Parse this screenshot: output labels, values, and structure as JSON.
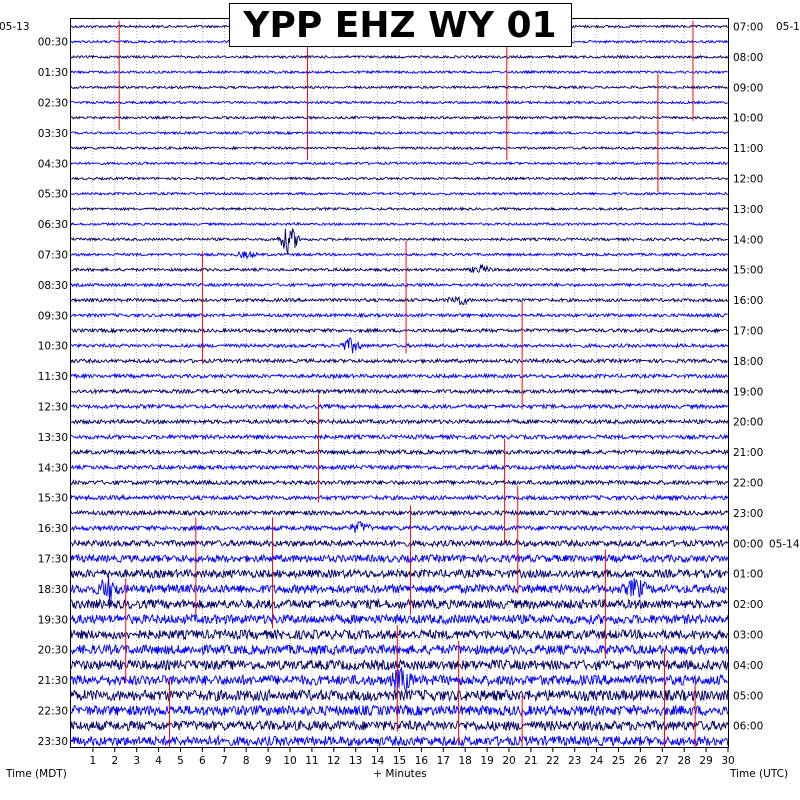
{
  "title": "YPP EHZ WY 01",
  "date_left": "05-13",
  "date_right_top": "05-1",
  "date_right_mid": "05-14",
  "xlabel_left": "Time (MDT)",
  "xlabel_center": "+ Minutes",
  "xlabel_right": "Time (UTC)",
  "colors": {
    "dark_trace": "#000066",
    "light_trace": "#0000ff",
    "pick": "#ff0000",
    "grid": "#888888"
  },
  "chart_data": {
    "type": "line",
    "title": "YPP EHZ WY 01",
    "xlabel": "+ Minutes",
    "ylabel": "Time (MDT)",
    "x_ticks": [
      "1",
      "2",
      "3",
      "4",
      "5",
      "6",
      "7",
      "8",
      "9",
      "10",
      "11",
      "12",
      "13",
      "14",
      "15",
      "16",
      "17",
      "18",
      "19",
      "20",
      "21",
      "22",
      "23",
      "24",
      "25",
      "26",
      "27",
      "28",
      "29",
      "30"
    ],
    "xlim": [
      0,
      30
    ],
    "grid": true,
    "left_labels": [
      "00:30",
      "01:30",
      "02:30",
      "03:30",
      "04:30",
      "05:30",
      "06:30",
      "07:30",
      "08:30",
      "09:30",
      "10:30",
      "11:30",
      "12:30",
      "13:30",
      "14:30",
      "15:30",
      "16:30",
      "17:30",
      "18:30",
      "19:30",
      "20:30",
      "21:30",
      "22:30",
      "23:30"
    ],
    "right_labels": [
      "07:00",
      "08:00",
      "09:00",
      "10:00",
      "11:00",
      "12:00",
      "13:00",
      "14:00",
      "15:00",
      "16:00",
      "17:00",
      "18:00",
      "19:00",
      "20:00",
      "21:00",
      "22:00",
      "23:00",
      "00:00",
      "01:00",
      "02:00",
      "03:00",
      "04:00",
      "05:00",
      "06:00"
    ],
    "trace_count": 48,
    "trace_amplitudes": [
      1.2,
      1.2,
      1.2,
      1.2,
      1.2,
      1.2,
      1.2,
      1.2,
      1.2,
      1.2,
      1.2,
      1.2,
      1.2,
      1.2,
      1.3,
      1.3,
      1.4,
      1.5,
      1.6,
      1.6,
      1.7,
      1.7,
      1.8,
      1.8,
      1.9,
      1.9,
      2.0,
      2.0,
      2.0,
      2.0,
      2.1,
      2.1,
      2.2,
      2.3,
      3.0,
      3.6,
      4.0,
      4.3,
      4.5,
      4.6,
      4.6,
      4.7,
      4.8,
      5.0,
      5.4,
      5.0,
      4.8,
      4.7
    ],
    "events": [
      {
        "trace": 14,
        "minute": 9.95,
        "amplitude": 14
      },
      {
        "trace": 15,
        "minute": 8.0,
        "amplitude": 3
      },
      {
        "trace": 16,
        "minute": 18.7,
        "amplitude": 4
      },
      {
        "trace": 18,
        "minute": 17.7,
        "amplitude": 5
      },
      {
        "trace": 21,
        "minute": 12.8,
        "amplitude": 7
      },
      {
        "trace": 33,
        "minute": 13.2,
        "amplitude": 5
      },
      {
        "trace": 37,
        "minute": 1.7,
        "amplitude": 10
      },
      {
        "trace": 37,
        "minute": 25.8,
        "amplitude": 8
      },
      {
        "trace": 43,
        "minute": 15.1,
        "amplitude": 10
      }
    ],
    "picks": [
      {
        "minute": 2.2,
        "from_trace": 0,
        "to_trace": 6.8
      },
      {
        "minute": 10.8,
        "from_trace": 1.1,
        "to_trace": 8.8
      },
      {
        "minute": 19.9,
        "from_trace": 1.1,
        "to_trace": 8.8
      },
      {
        "minute": 28.4,
        "from_trace": 0,
        "to_trace": 6.2
      },
      {
        "minute": 26.8,
        "from_trace": 3.5,
        "to_trace": 10.9
      },
      {
        "minute": 6.0,
        "from_trace": 15.2,
        "to_trace": 22.2
      },
      {
        "minute": 15.3,
        "from_trace": 14.5,
        "to_trace": 21.5
      },
      {
        "minute": 20.6,
        "from_trace": 18.5,
        "to_trace": 25.2
      },
      {
        "minute": 11.3,
        "from_trace": 24.6,
        "to_trace": 31.3
      },
      {
        "minute": 19.8,
        "from_trace": 27.5,
        "to_trace": 34.1
      },
      {
        "minute": 20.4,
        "from_trace": 30.6,
        "to_trace": 37.3
      },
      {
        "minute": 15.5,
        "from_trace": 31.9,
        "to_trace": 38.7
      },
      {
        "minute": 5.7,
        "from_trace": 32.7,
        "to_trace": 38.7
      },
      {
        "minute": 9.2,
        "from_trace": 32.7,
        "to_trace": 39.6
      },
      {
        "minute": 2.5,
        "from_trace": 36.7,
        "to_trace": 43.2
      },
      {
        "minute": 24.4,
        "from_trace": 34.8,
        "to_trace": 41.6
      },
      {
        "minute": 14.9,
        "from_trace": 39.8,
        "to_trace": 46.4
      },
      {
        "minute": 17.7,
        "from_trace": 40.8,
        "to_trace": 47.3
      },
      {
        "minute": 27.1,
        "from_trace": 41.4,
        "to_trace": 47.6
      },
      {
        "minute": 28.5,
        "from_trace": 43.6,
        "to_trace": 47.6
      },
      {
        "minute": 4.5,
        "from_trace": 43.2,
        "to_trace": 48
      },
      {
        "minute": 20.6,
        "from_trace": 44.4,
        "to_trace": 48
      }
    ]
  }
}
